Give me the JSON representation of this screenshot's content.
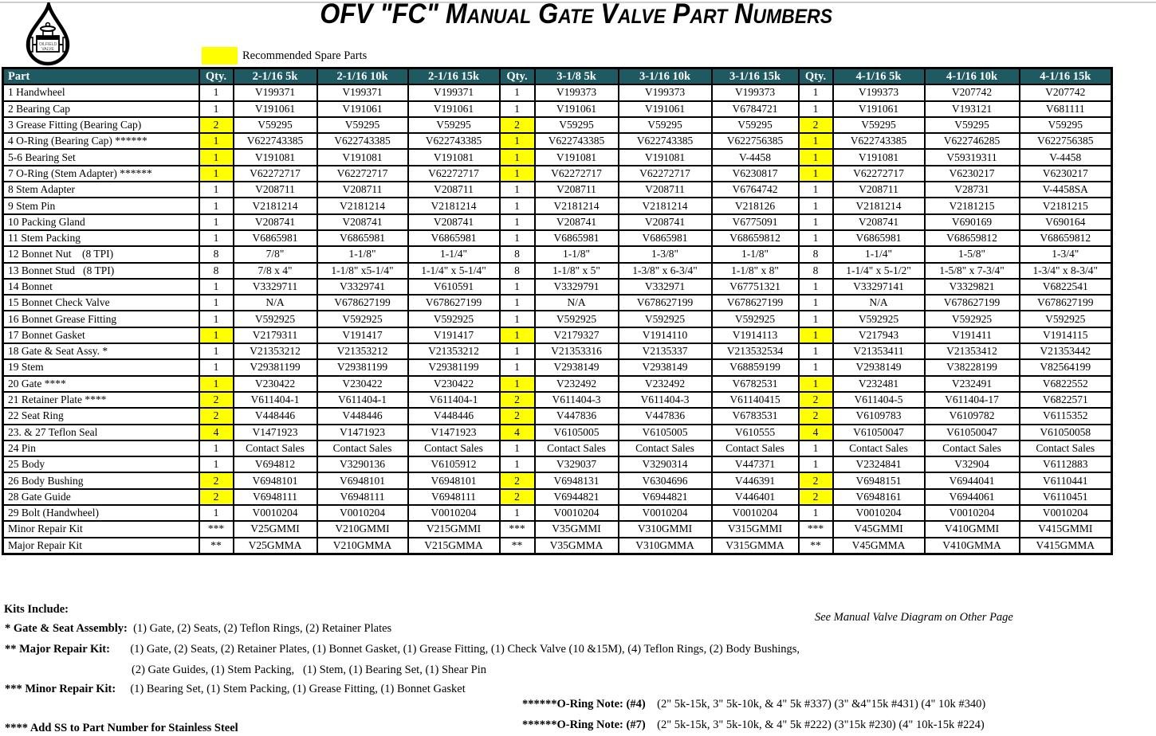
{
  "title": "OFV  \"FC\" Manual Gate Valve Part Numbers",
  "legend": {
    "label": "Recommended Spare Parts",
    "swatch_color": "#ffff00"
  },
  "colors": {
    "header_bg": "#1f5a63",
    "header_text": "#ffffff",
    "highlight": "#ffff00"
  },
  "logo": {
    "name": "oilfield-valve-drop-logo"
  },
  "table": {
    "headers": [
      "Part",
      "Qty.",
      "2-1/16 5k",
      "2-1/16 10k",
      "2-1/16 15k",
      "Qty.",
      "3-1/8 5k",
      "3-1/16 10k",
      "3-1/16 15k",
      "Qty.",
      "4-1/16 5k",
      "4-1/16 10k",
      "4-1/16 15k"
    ],
    "rows": [
      {
        "part": "1 Handwheel",
        "hl": false,
        "cells": [
          "1",
          "V199371",
          "V199371",
          "V199371",
          "1",
          "V199373",
          "V199373",
          "V199373",
          "1",
          "V199373",
          "V207742",
          "V207742"
        ]
      },
      {
        "part": "2 Bearing Cap",
        "hl": false,
        "cells": [
          "1",
          "V191061",
          "V191061",
          "V191061",
          "1",
          "V191061",
          "V191061",
          "V6784721",
          "1",
          "V191061",
          "V193121",
          "V681111"
        ]
      },
      {
        "part": "3 Grease Fitting (Bearing Cap)",
        "hl": true,
        "cells": [
          "2",
          "V59295",
          "V59295",
          "V59295",
          "2",
          "V59295",
          "V59295",
          "V59295",
          "2",
          "V59295",
          "V59295",
          "V59295"
        ]
      },
      {
        "part": "4 O-Ring (Bearing Cap) ******",
        "hl": true,
        "cells": [
          "1",
          "V622743385",
          "V622743385",
          "V622743385",
          "1",
          "V622743385",
          "V622743385",
          "V622756385",
          "1",
          "V622743385",
          "V622746285",
          "V622756385"
        ]
      },
      {
        "part": "5-6 Bearing Set",
        "hl": true,
        "cells": [
          "1",
          "V191081",
          "V191081",
          "V191081",
          "1",
          "V191081",
          "V191081",
          "V-4458",
          "1",
          "V191081",
          "V59319311",
          "V-4458"
        ]
      },
      {
        "part": "7 O-Ring (Stem Adapter) ******",
        "hl": true,
        "cells": [
          "1",
          "V62272717",
          "V62272717",
          "V62272717",
          "1",
          "V62272717",
          "V62272717",
          "V6230817",
          "1",
          "V62272717",
          "V6230217",
          "V6230217"
        ]
      },
      {
        "part": "8 Stem Adapter",
        "hl": false,
        "cells": [
          "1",
          "V208711",
          "V208711",
          "V208711",
          "1",
          "V208711",
          "V208711",
          "V6764742",
          "1",
          "V208711",
          "V28731",
          "V-4458SA"
        ]
      },
      {
        "part": "9 Stem Pin",
        "hl": false,
        "cells": [
          "1",
          "V2181214",
          "V2181214",
          "V2181214",
          "1",
          "V2181214",
          "V2181214",
          "V218126",
          "1",
          "V2181214",
          "V2181215",
          "V2181215"
        ]
      },
      {
        "part": "10 Packing Gland",
        "hl": false,
        "cells": [
          "1",
          "V208741",
          "V208741",
          "V208741",
          "1",
          "V208741",
          "V208741",
          "V6775091",
          "1",
          "V208741",
          "V690169",
          "V690164"
        ]
      },
      {
        "part": "11 Stem Packing",
        "hl": false,
        "cells": [
          "1",
          "V6865981",
          "V6865981",
          "V6865981",
          "1",
          "V6865981",
          "V6865981",
          "V68659812",
          "1",
          "V6865981",
          "V68659812",
          "V68659812"
        ]
      },
      {
        "part": "12 Bonnet Nut    (8 TPI)",
        "hl": false,
        "cells": [
          "8",
          "7/8\"",
          "1-1/8\"",
          "1-1/4\"",
          "8",
          "1-1/8\"",
          "1-3/8\"",
          "1-1/8\"",
          "8",
          "1-1/4\"",
          "1-5/8\"",
          "1-3/4\""
        ]
      },
      {
        "part": "13 Bonnet Stud   (8 TPI)",
        "hl": false,
        "cells": [
          "8",
          "7/8 x 4\"",
          "1-1/8\" x5-1/4\"",
          "1-1/4\" x 5-1/4\"",
          "8",
          "1-1/8\" x 5\"",
          "1-3/8\" x 6-3/4\"",
          "1-1/8\" x 8\"",
          "8",
          "1-1/4\" x 5-1/2\"",
          "1-5/8\" x 7-3/4\"",
          "1-3/4\" x 8-3/4\""
        ]
      },
      {
        "part": "14 Bonnet",
        "hl": false,
        "cells": [
          "1",
          "V3329711",
          "V3329741",
          "V610591",
          "1",
          "V3329791",
          "V332971",
          "V67751321",
          "1",
          "V33297141",
          "V3329821",
          "V6822541"
        ]
      },
      {
        "part": "15 Bonnet Check Valve",
        "hl": false,
        "cells": [
          "1",
          "N/A",
          "V678627199",
          "V678627199",
          "1",
          "N/A",
          "V678627199",
          "V678627199",
          "1",
          "N/A",
          "V678627199",
          "V678627199"
        ]
      },
      {
        "part": "16 Bonnet Grease Fitting",
        "hl": false,
        "cells": [
          "1",
          "V592925",
          "V592925",
          "V592925",
          "1",
          "V592925",
          "V592925",
          "V592925",
          "1",
          "V592925",
          "V592925",
          "V592925"
        ]
      },
      {
        "part": "17 Bonnet Gasket",
        "hl": true,
        "cells": [
          "1",
          "V2179311",
          "V191417",
          "V191417",
          "1",
          "V2179327",
          "V1914110",
          "V1914113",
          "1",
          "V217943",
          "V191411",
          "V1914115"
        ]
      },
      {
        "part": "18 Gate & Seat Assy. *",
        "hl": false,
        "cells": [
          "1",
          "V21353212",
          "V21353212",
          "V21353212",
          "1",
          "V21353316",
          "V2135337",
          "V213532534",
          "1",
          "V21353411",
          "V21353412",
          "V21353442"
        ]
      },
      {
        "part": "19 Stem",
        "hl": false,
        "cells": [
          "1",
          "V29381199",
          "V29381199",
          "V29381199",
          "1",
          "V2938149",
          "V2938149",
          "V68859199",
          "1",
          "V2938149",
          "V38228199",
          "V82564199"
        ]
      },
      {
        "part": "20 Gate ****",
        "hl": true,
        "cells": [
          "1",
          "V230422",
          "V230422",
          "V230422",
          "1",
          "V232492",
          "V232492",
          "V6782531",
          "1",
          "V232481",
          "V232491",
          "V6822552"
        ]
      },
      {
        "part": "21 Retainer Plate ****",
        "hl": true,
        "cells": [
          "2",
          "V611404-1",
          "V611404-1",
          "V611404-1",
          "2",
          "V611404-3",
          "V611404-3",
          "V61140415",
          "2",
          "V611404-5",
          "V611404-17",
          "V6822571"
        ]
      },
      {
        "part": "22 Seat Ring",
        "hl": true,
        "cells": [
          "2",
          "V448446",
          "V448446",
          "V448446",
          "2",
          "V447836",
          "V447836",
          "V6783531",
          "2",
          "V6109783",
          "V6109782",
          "V6115352"
        ]
      },
      {
        "part": "23. & 27 Teflon Seal",
        "hl": true,
        "cells": [
          "4",
          "V1471923",
          "V1471923",
          "V1471923",
          "4",
          "V6105005",
          "V6105005",
          "V610555",
          "4",
          "V61050047",
          "V61050047",
          "V61050058"
        ]
      },
      {
        "part": "24 Pin",
        "hl": false,
        "cells": [
          "1",
          "Contact Sales",
          "Contact Sales",
          "Contact Sales",
          "1",
          "Contact Sales",
          "Contact Sales",
          "Contact Sales",
          "1",
          "Contact Sales",
          "Contact Sales",
          "Contact Sales"
        ]
      },
      {
        "part": "25 Body",
        "hl": false,
        "cells": [
          "1",
          "V694812",
          "V3290136",
          "V6105912",
          "1",
          "V329037",
          "V3290314",
          "V447371",
          "1",
          "V2324841",
          "V32904",
          "V6112883"
        ]
      },
      {
        "part": "26 Body Bushing",
        "hl": true,
        "cells": [
          "2",
          "V6948101",
          "V6948101",
          "V6948101",
          "2",
          "V6948131",
          "V6304696",
          "V446391",
          "2",
          "V6948151",
          "V6944041",
          "V6110441"
        ]
      },
      {
        "part": "28 Gate Guide",
        "hl": true,
        "cells": [
          "2",
          "V6948111",
          "V6948111",
          "V6948111",
          "2",
          "V6944821",
          "V6944821",
          "V446401",
          "2",
          "V6948161",
          "V6944061",
          "V6110451"
        ]
      },
      {
        "part": "29 Bolt (Handwheel)",
        "hl": false,
        "cells": [
          "1",
          "V0010204",
          "V0010204",
          "V0010204",
          "1",
          "V0010204",
          "V0010204",
          "V0010204",
          "1",
          "V0010204",
          "V0010204",
          "V0010204"
        ]
      },
      {
        "part": "Minor Repair Kit",
        "hl": false,
        "cells": [
          "***",
          "V25GMMI",
          "V210GMMI",
          "V215GMMI",
          "***",
          "V35GMMI",
          "V310GMMI",
          "V315GMMI",
          "***",
          "V45GMMI",
          "V410GMMI",
          "V415GMMI"
        ]
      },
      {
        "part": "Major Repair Kit",
        "hl": false,
        "cells": [
          "**",
          "V25GMMA",
          "V210GMMA",
          "V215GMMA",
          "**",
          "V35GMMA",
          "V310GMMA",
          "V315GMMA",
          "**",
          "V45GMMA",
          "V410GMMA",
          "V415GMMA"
        ]
      }
    ]
  },
  "footer": {
    "kits_include": "Kits Include:",
    "notes": [
      {
        "bold": "* Gate & Seat Assembly:",
        "text": "  (1) Gate, (2) Seats, (2) Teflon Rings, (2) Retainer Plates"
      },
      {
        "bold": "** Major Repair Kit:",
        "text": "       (1) Gate, (2) Seats, (2) Retainer Plates, (1) Bonnet Gasket, (1) Grease Fitting, (1) Check Valve (10 &15M), (4) Teflon Rings, (2) Body Bushings,"
      },
      {
        "bold": "",
        "text": "(2) Gate Guides, (1) Stem Packing,   (1) Stem, (1) Bearing Set, (1) Shear Pin"
      },
      {
        "bold": "*** Minor Repair Kit:",
        "text": "     (1) Bearing Set, (1) Stem Packing, (1) Grease Fitting, (1) Bonnet Gasket"
      },
      {
        "bold": "**** Add SS to Part Number for Stainless Steel",
        "text": ""
      }
    ],
    "diagram_note": "See Manual Valve Diagram on Other Page",
    "oring_notes": [
      {
        "bold": "******O-Ring Note: (#4)",
        "text": "    (2\" 5k-15k, 3\" 5k-10k, & 4\" 5k #337) (3\" &4\"15k #431) (4\" 10k #340)"
      },
      {
        "bold": "******O-Ring Note: (#7)",
        "text": "    (2\" 5k-15k, 3\" 5k-10k, & 4\" 5k #222) (3\"15k #230) (4\" 10k-15k #224)"
      }
    ]
  }
}
